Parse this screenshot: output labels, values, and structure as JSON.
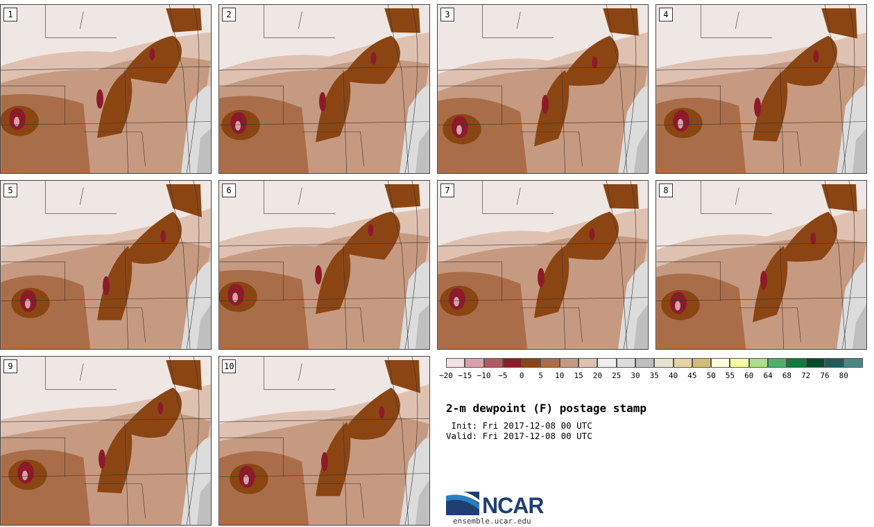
{
  "panels": [
    {
      "label": "1"
    },
    {
      "label": "2"
    },
    {
      "label": "3"
    },
    {
      "label": "4"
    },
    {
      "label": "5"
    },
    {
      "label": "6"
    },
    {
      "label": "7"
    },
    {
      "label": "8"
    },
    {
      "label": "9"
    },
    {
      "label": "10"
    }
  ],
  "colorbar": {
    "colors": [
      "#f0e1e3",
      "#d7a2a9",
      "#b05a63",
      "#8c1b2a",
      "#8b4513",
      "#a96e49",
      "#c69a80",
      "#dfc1b2",
      "#eeeeee",
      "#dcdcdc",
      "#bfbfbf",
      "#e6e3cf",
      "#e3d3a5",
      "#d2bd78",
      "#fffde0",
      "#f5fba4",
      "#addf8b",
      "#4fb06a",
      "#117a3d",
      "#074a2b",
      "#1e5b5a",
      "#4e8585"
    ],
    "ticks": [
      "−20",
      "−15",
      "−10",
      "−5",
      "0",
      "5",
      "10",
      "15",
      "20",
      "25",
      "30",
      "35",
      "40",
      "45",
      "50",
      "55",
      "60",
      "64",
      "68",
      "72",
      "76",
      "80"
    ]
  },
  "title": "2-m dewpoint (F) postage stamp",
  "init_line": " Init: Fri 2017-12-08 00 UTC",
  "valid_line": "Valid: Fri 2017-12-08 00 UTC",
  "logo": {
    "name": "NCAR",
    "url": "ensemble.ucar.edu",
    "blue": "#1f3f73",
    "sky": "#2a7ec0"
  }
}
